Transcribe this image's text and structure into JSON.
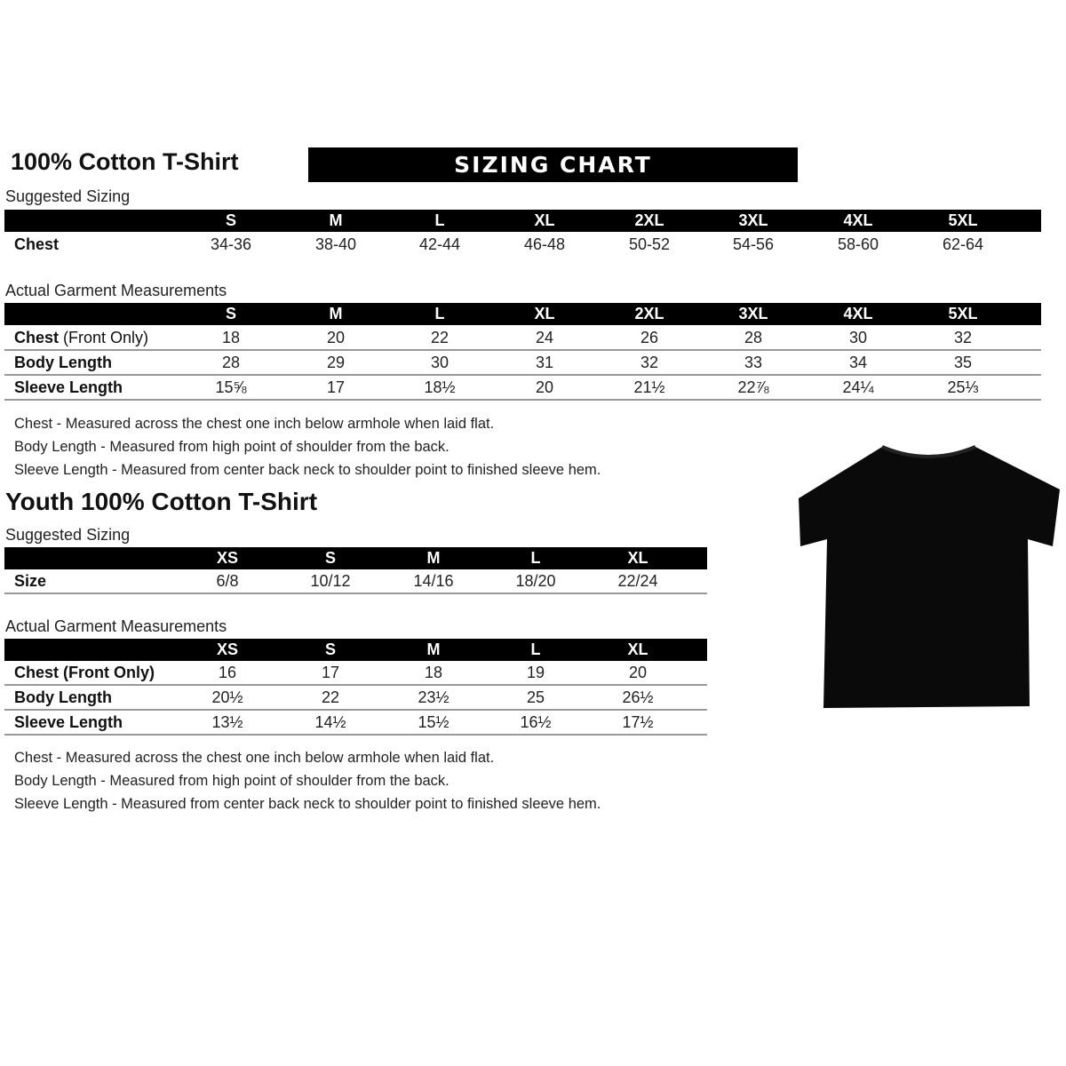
{
  "adult": {
    "title": "100% Cotton T-Shirt",
    "banner": "SIZING CHART",
    "suggested_label": "Suggested Sizing",
    "sizes": [
      "S",
      "M",
      "L",
      "XL",
      "2XL",
      "3XL",
      "4XL",
      "5XL"
    ],
    "suggested_rows": [
      {
        "label": "Chest",
        "values": [
          "34-36",
          "38-40",
          "42-44",
          "46-48",
          "50-52",
          "54-56",
          "58-60",
          "62-64"
        ]
      }
    ],
    "actual_label": "Actual Garment Measurements",
    "actual_rows": [
      {
        "label": "Chest",
        "label_suffix": " (Front Only)",
        "values": [
          "18",
          "20",
          "22",
          "24",
          "26",
          "28",
          "30",
          "32"
        ]
      },
      {
        "label": "Body Length",
        "values": [
          "28",
          "29",
          "30",
          "31",
          "32",
          "33",
          "34",
          "35"
        ]
      },
      {
        "label": "Sleeve Length",
        "values": [
          "15⅝",
          "17",
          "18½",
          "20",
          "21½",
          "22⅞",
          "24¼",
          "25⅓"
        ]
      }
    ],
    "notes": [
      "Chest - Measured across the chest one inch below armhole when laid flat.",
      "Body Length - Measured from high point of shoulder from the back.",
      "Sleeve Length - Measured from center back neck to shoulder point to finished sleeve hem."
    ]
  },
  "youth": {
    "title": "Youth 100% Cotton T-Shirt",
    "suggested_label": "Suggested Sizing",
    "sizes": [
      "XS",
      "S",
      "M",
      "L",
      "XL"
    ],
    "suggested_rows": [
      {
        "label": "Size",
        "values": [
          "6/8",
          "10/12",
          "14/16",
          "18/20",
          "22/24"
        ]
      }
    ],
    "actual_label": "Actual Garment Measurements",
    "actual_rows": [
      {
        "label": "Chest (Front Only)",
        "values": [
          "16",
          "17",
          "18",
          "19",
          "20"
        ]
      },
      {
        "label": "Body Length",
        "values": [
          "20½",
          "22",
          "23½",
          "25",
          "26½"
        ]
      },
      {
        "label": "Sleeve Length",
        "values": [
          "13½",
          "14½",
          "15½",
          "16½",
          "17½"
        ]
      }
    ],
    "notes": [
      "Chest - Measured across the chest one inch below armhole when laid flat.",
      "Body Length - Measured from high point of shoulder from the back.",
      "Sleeve Length - Measured from center back neck to shoulder point to finished sleeve hem."
    ]
  },
  "image": {
    "icon": "black-tshirt",
    "color": "#0a0a0a"
  }
}
